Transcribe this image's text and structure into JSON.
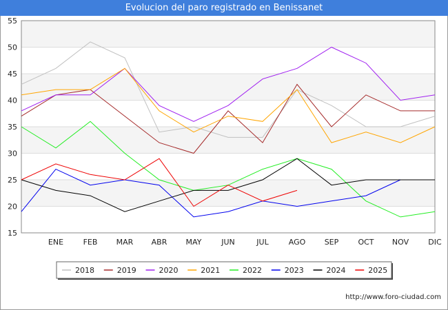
{
  "header": {
    "title": "Evolucion del paro registrado en Benissanet"
  },
  "footer": {
    "source": "http://www.foro-ciudad.com"
  },
  "chart_data": {
    "type": "line",
    "title": "Evolucion del paro registrado en Benissanet",
    "xlabel": "",
    "ylabel": "",
    "categories": [
      "",
      "ENE",
      "FEB",
      "MAR",
      "ABR",
      "MAY",
      "JUN",
      "JUL",
      "AGO",
      "SEP",
      "OCT",
      "NOV",
      "DIC"
    ],
    "ylim": [
      15,
      55
    ],
    "yticks": [
      15,
      20,
      25,
      30,
      35,
      40,
      45,
      50,
      55
    ],
    "grid": true,
    "legend_position": "bottom",
    "series": [
      {
        "name": "2018",
        "color": "#c0c0c0",
        "values": [
          43,
          46,
          51,
          48,
          34,
          35,
          33,
          33,
          42,
          39,
          35,
          35,
          37
        ]
      },
      {
        "name": "2019",
        "color": "#a52a2a",
        "values": [
          37,
          41,
          42,
          37,
          32,
          30,
          38,
          32,
          43,
          35,
          41,
          38,
          38
        ]
      },
      {
        "name": "2020",
        "color": "#a020f0",
        "values": [
          38,
          41,
          41,
          46,
          39,
          36,
          39,
          44,
          46,
          50,
          47,
          40,
          41
        ]
      },
      {
        "name": "2021",
        "color": "#ffa500",
        "values": [
          41,
          42,
          42,
          46,
          38,
          34,
          37,
          36,
          42,
          32,
          34,
          32,
          35
        ]
      },
      {
        "name": "2022",
        "color": "#22ee22",
        "values": [
          35,
          31,
          36,
          30,
          25,
          23,
          24,
          27,
          29,
          27,
          21,
          18,
          19
        ]
      },
      {
        "name": "2023",
        "color": "#0000ee",
        "values": [
          19,
          27,
          24,
          25,
          24,
          18,
          19,
          21,
          20,
          21,
          22,
          25,
          null
        ]
      },
      {
        "name": "2024",
        "color": "#000000",
        "values": [
          25,
          23,
          22,
          19,
          21,
          23,
          23,
          25,
          29,
          24,
          25,
          25,
          25
        ]
      },
      {
        "name": "2025",
        "color": "#ee0000",
        "values": [
          25,
          28,
          26,
          25,
          29,
          20,
          24,
          21,
          23,
          null,
          null,
          null,
          null
        ]
      }
    ]
  }
}
